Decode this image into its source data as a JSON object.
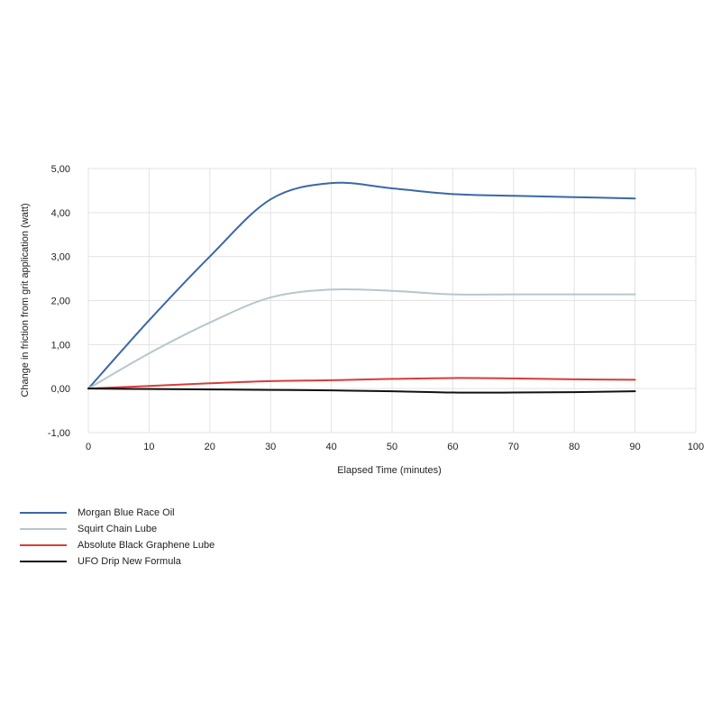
{
  "chart_data": {
    "type": "line",
    "xlabel": "Elapsed Time (minutes)",
    "ylabel": "Change in friction from grit application (watt)",
    "xlim": [
      0,
      100
    ],
    "ylim": [
      -1,
      5
    ],
    "x_ticks": [
      "0",
      "10",
      "20",
      "30",
      "40",
      "50",
      "60",
      "70",
      "80",
      "90",
      "100"
    ],
    "y_ticks": [
      "5,00",
      "4,00",
      "3,00",
      "2,00",
      "1,00",
      "0,00",
      "-1,00"
    ],
    "grid": true,
    "legend_position": "bottom-left",
    "x": [
      0,
      10,
      20,
      30,
      40,
      50,
      60,
      70,
      80,
      90
    ],
    "series": [
      {
        "name": "Morgan Blue Race Oil",
        "color": "#3a68a6",
        "values": [
          0,
          1.55,
          3.0,
          4.3,
          4.67,
          4.55,
          4.42,
          4.38,
          4.35,
          4.32
        ]
      },
      {
        "name": "Squirt Chain Lube",
        "color": "#b7c6ce",
        "values": [
          0,
          0.8,
          1.5,
          2.07,
          2.25,
          2.22,
          2.14,
          2.14,
          2.14,
          2.14
        ]
      },
      {
        "name": "Absolute Black Graphene Lube",
        "color": "#d93b3b",
        "values": [
          0,
          0.06,
          0.12,
          0.17,
          0.19,
          0.22,
          0.24,
          0.23,
          0.21,
          0.2
        ]
      },
      {
        "name": "UFO Drip New Formula",
        "color": "#111111",
        "values": [
          0,
          -0.01,
          -0.02,
          -0.03,
          -0.04,
          -0.06,
          -0.09,
          -0.09,
          -0.08,
          -0.06
        ]
      }
    ]
  }
}
